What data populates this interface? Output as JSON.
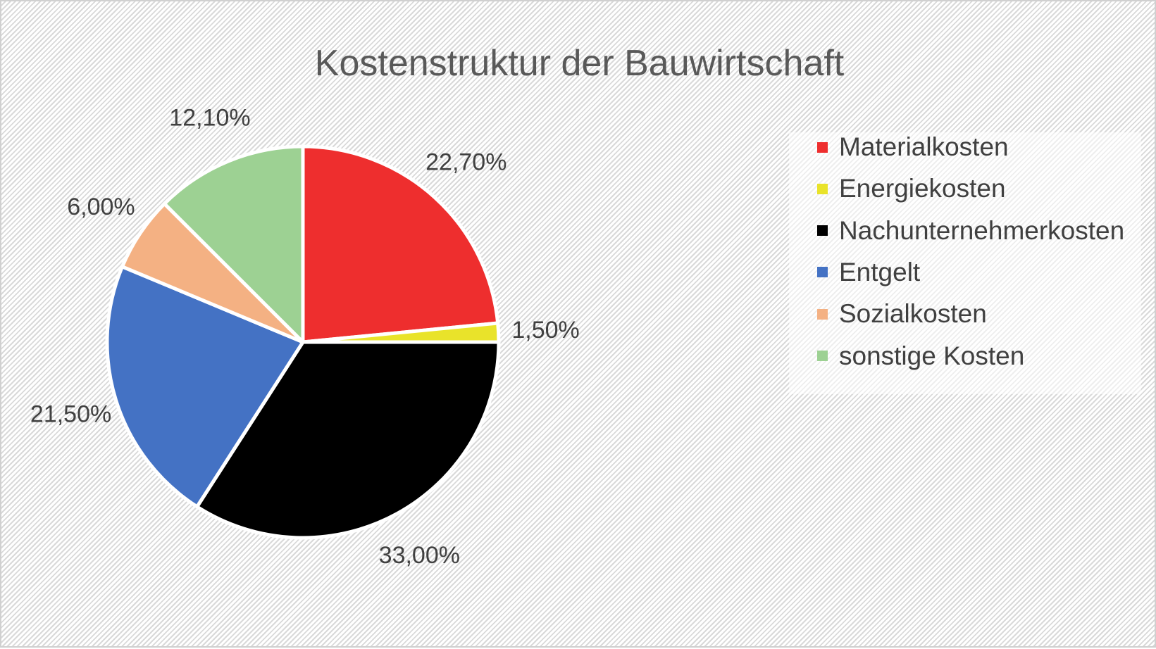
{
  "chart_data": {
    "type": "pie",
    "title": "Kostenstruktur der Bauwirtschaft",
    "categories": [
      "Materialkosten",
      "Energiekosten",
      "Nachunternehmerkosten",
      "Entgelt",
      "Sozialkosten",
      "sonstige Kosten"
    ],
    "values": [
      22.7,
      1.5,
      33.0,
      21.5,
      6.0,
      12.1
    ],
    "data_labels": [
      "22,70%",
      "1,50%",
      "33,00%",
      "21,50%",
      "6,00%",
      "12,10%"
    ],
    "colors": [
      "#ee2e2e",
      "#e9e32a",
      "#000000",
      "#4472c4",
      "#f4b183",
      "#9dd193"
    ],
    "legend_position": "right",
    "start_angle": "12 o'clock, clockwise"
  }
}
